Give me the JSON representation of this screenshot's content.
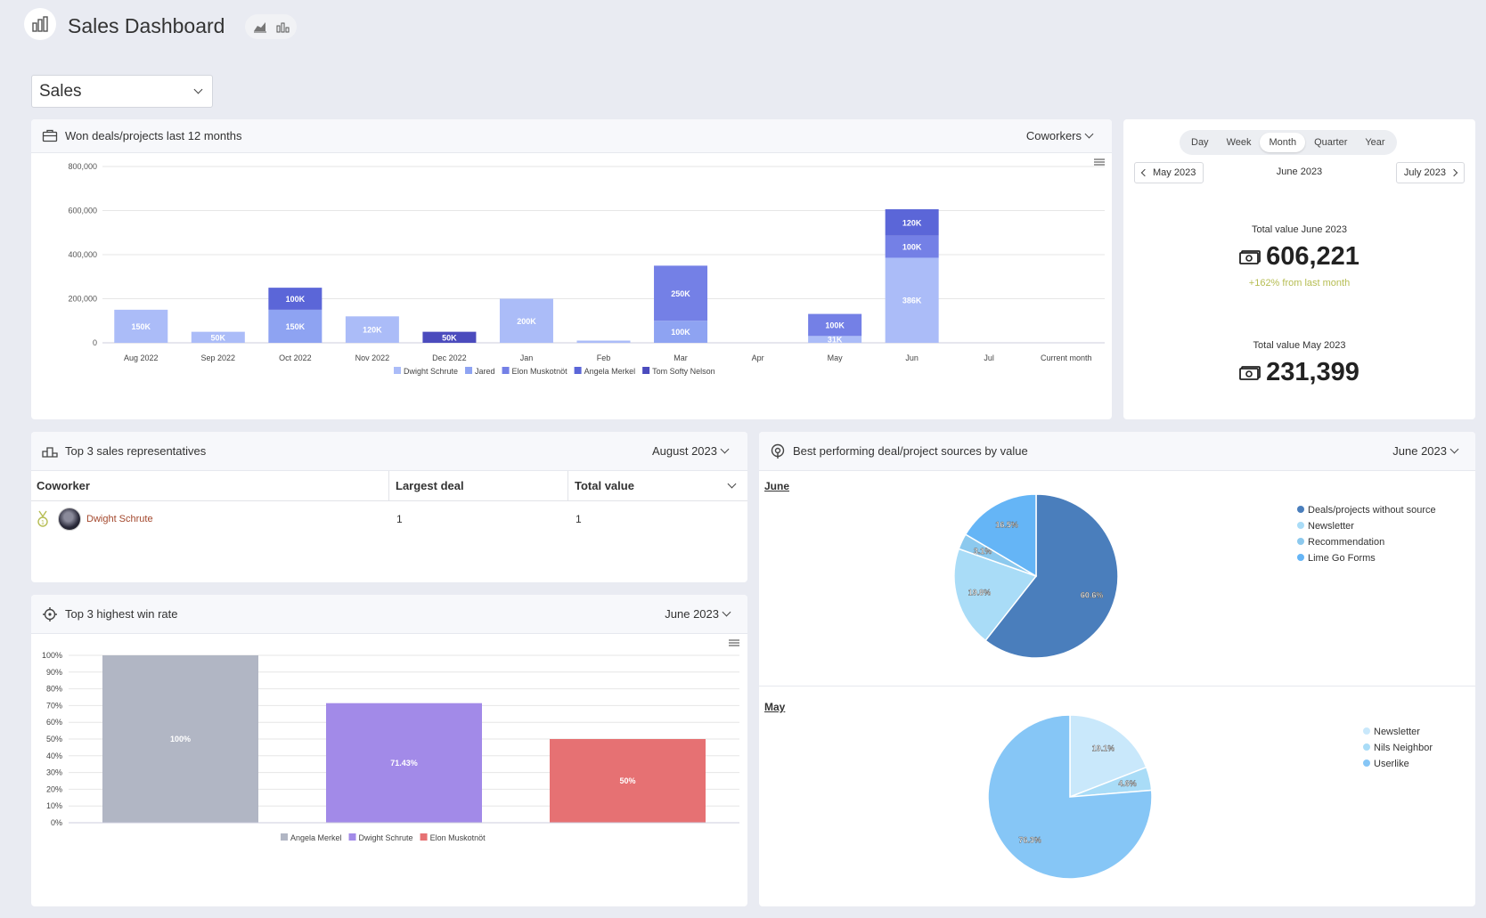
{
  "page": {
    "title": "Sales Dashboard",
    "view_select": "Sales"
  },
  "colors": {
    "dwight": "#abbcf8",
    "jared": "#8ea3f2",
    "elon": "#7480e6",
    "angela": "#5b66d8",
    "tom": "#4b4bbd",
    "positive": "#b6bd53"
  },
  "won_deals": {
    "title": "Won deals/projects last 12 months",
    "filter": "Coworkers",
    "chart_data": {
      "type": "bar",
      "stacked": true,
      "categories": [
        "Aug 2022",
        "Sep 2022",
        "Oct 2022",
        "Nov 2022",
        "Dec 2022",
        "Jan",
        "Feb",
        "Mar",
        "Apr",
        "May",
        "Jun",
        "Jul",
        "Current month"
      ],
      "ylim": [
        0,
        800000
      ],
      "yticks": [
        "800,000",
        "600,000",
        "400,000",
        "200,000",
        "0"
      ],
      "grid": true,
      "legend_position": "bottom",
      "series": [
        {
          "name": "Dwight Schrute",
          "color": "#abbcf8",
          "values": [
            150000,
            50000,
            0,
            120000,
            0,
            200000,
            10000,
            0,
            0,
            31000,
            386000,
            0,
            0
          ],
          "labels": [
            "150K",
            "50K",
            "",
            "120K",
            "",
            "200K",
            "",
            "",
            "",
            "31K",
            "386K",
            "",
            ""
          ]
        },
        {
          "name": "Jared",
          "color": "#8ea3f2",
          "values": [
            0,
            0,
            150000,
            0,
            0,
            0,
            0,
            100000,
            0,
            0,
            0,
            0,
            0
          ],
          "labels": [
            "",
            "",
            "150K",
            "",
            "",
            "",
            "",
            "100K",
            "",
            "",
            "",
            "",
            ""
          ]
        },
        {
          "name": "Elon Muskotnöt",
          "color": "#7480e6",
          "values": [
            0,
            0,
            0,
            0,
            0,
            0,
            0,
            250000,
            0,
            100000,
            100000,
            0,
            0
          ],
          "labels": [
            "",
            "",
            "",
            "",
            "",
            "",
            "",
            "250K",
            "",
            "100K",
            "100K",
            "",
            ""
          ]
        },
        {
          "name": "Angela Merkel",
          "color": "#5b66d8",
          "values": [
            0,
            0,
            100000,
            0,
            0,
            0,
            0,
            0,
            0,
            0,
            120000,
            0,
            0
          ],
          "labels": [
            "",
            "",
            "100K",
            "",
            "",
            "",
            "",
            "",
            "",
            "",
            "120K",
            "",
            ""
          ]
        },
        {
          "name": "Tom Softy Nelson",
          "color": "#4b4bbd",
          "values": [
            0,
            0,
            0,
            0,
            50000,
            0,
            0,
            0,
            0,
            0,
            0,
            0,
            0
          ],
          "labels": [
            "",
            "",
            "",
            "",
            "50K",
            "",
            "",
            "",
            "",
            "",
            "",
            "",
            ""
          ]
        }
      ]
    }
  },
  "period": {
    "tabs": [
      "Day",
      "Week",
      "Month",
      "Quarter",
      "Year"
    ],
    "active_tab": "Month",
    "prev": "May 2023",
    "current": "June 2023",
    "next": "July 2023",
    "total1_label": "Total value June 2023",
    "total1_value": "606,221",
    "change": "+162% from last month",
    "total2_label": "Total value May 2023",
    "total2_value": "231,399"
  },
  "top3": {
    "title": "Top 3 sales representatives",
    "filter": "August 2023",
    "columns": [
      "Coworker",
      "Largest deal",
      "Total value"
    ],
    "rows": [
      {
        "name": "Dwight Schrute",
        "largest": "1",
        "total": "1"
      }
    ]
  },
  "winrate": {
    "title": "Top 3 highest win rate",
    "filter": "June 2023",
    "chart_data": {
      "type": "bar",
      "ylim": [
        0,
        100
      ],
      "yticks": [
        "100%",
        "90%",
        "80%",
        "70%",
        "60%",
        "50%",
        "40%",
        "30%",
        "20%",
        "10%",
        "0%"
      ],
      "grid": true,
      "legend_position": "bottom",
      "series": [
        {
          "name": "Angela Merkel",
          "value": 100,
          "label": "100%",
          "color": "#b1b6c4"
        },
        {
          "name": "Dwight Schrute",
          "value": 71.43,
          "label": "71.43%",
          "color": "#a28ae8"
        },
        {
          "name": "Elon Muskotnöt",
          "value": 50,
          "label": "50%",
          "color": "#e67173"
        }
      ]
    }
  },
  "sources": {
    "title": "Best performing deal/project sources by value",
    "filter": "June 2023",
    "june": {
      "label": "June",
      "chart_data": {
        "type": "pie",
        "legend_position": "right",
        "slices": [
          {
            "name": "Deals/projects without source",
            "value": 60.6,
            "label": "60.6%",
            "color": "#4a7ebc"
          },
          {
            "name": "Newsletter",
            "value": 19.8,
            "label": "19.8%",
            "color": "#a9dcf7"
          },
          {
            "name": "Recommendation",
            "value": 3.1,
            "label": "3.1%",
            "color": "#8cc9ee"
          },
          {
            "name": "Lime Go Forms",
            "value": 16.5,
            "label": "16.5%",
            "color": "#65b5f6"
          }
        ]
      }
    },
    "may": {
      "label": "May",
      "chart_data": {
        "type": "pie",
        "legend_position": "right",
        "slices": [
          {
            "name": "Newsletter",
            "value": 19.1,
            "label": "19.1%",
            "color": "#c9e8fb"
          },
          {
            "name": "Nils Neighbor",
            "value": 4.6,
            "label": "4.6%",
            "color": "#a9dcf7"
          },
          {
            "name": "Userlike",
            "value": 76.3,
            "label": "76.3%",
            "color": "#86c6f6"
          }
        ]
      }
    }
  }
}
